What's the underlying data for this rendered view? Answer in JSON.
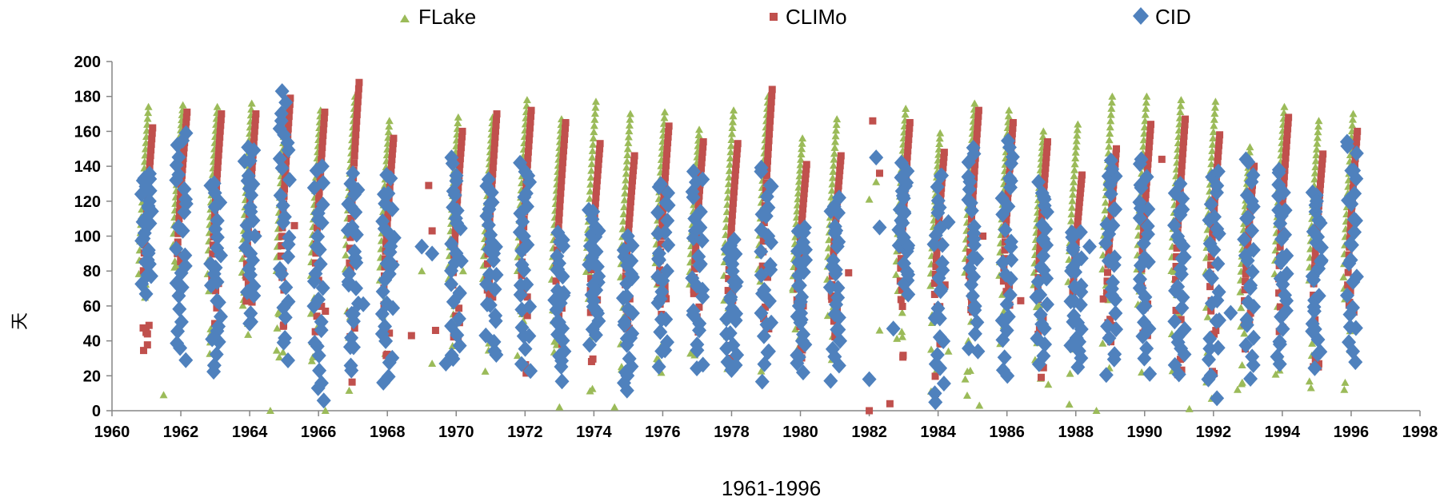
{
  "chart_data": {
    "type": "scatter",
    "xlabel": "1961-1996",
    "ylabel": "天",
    "xlim": [
      1960,
      1998
    ],
    "ylim": [
      0,
      200
    ],
    "x_ticks": [
      "1960",
      "1962",
      "1964",
      "1966",
      "1968",
      "1970",
      "1972",
      "1974",
      "1976",
      "1978",
      "1980",
      "1982",
      "1984",
      "1986",
      "1988",
      "1990",
      "1992",
      "1994",
      "1996",
      "1998"
    ],
    "y_ticks": [
      "0",
      "20",
      "40",
      "60",
      "80",
      "100",
      "120",
      "140",
      "160",
      "180",
      "200"
    ],
    "grid": false,
    "legend_position": "top",
    "series": [
      {
        "name": "FLake",
        "color": "#9bbb59",
        "marker": "triangle",
        "years": [
          1961,
          1962,
          1963,
          1964,
          1965,
          1966,
          1967,
          1968,
          1970,
          1971,
          1972,
          1973,
          1974,
          1975,
          1976,
          1977,
          1978,
          1979,
          1980,
          1981,
          1983,
          1984,
          1985,
          1986,
          1987,
          1988,
          1989,
          1990,
          1991,
          1992,
          1993,
          1994,
          1995,
          1996
        ],
        "peaks": [
          174,
          175,
          174,
          176,
          178,
          172,
          180,
          166,
          168,
          168,
          178,
          167,
          177,
          170,
          171,
          161,
          172,
          180,
          156,
          167,
          173,
          159,
          176,
          172,
          160,
          164,
          180,
          180,
          178,
          177,
          151,
          174,
          166,
          170
        ],
        "lows": [
          62,
          95,
          24,
          16,
          0,
          12,
          10,
          16,
          28,
          22,
          10,
          20,
          2,
          18,
          16,
          18,
          16,
          20,
          30,
          28,
          32,
          0,
          4,
          20,
          16,
          0,
          18,
          20,
          15,
          5,
          10,
          20,
          12,
          12
        ],
        "extra_points": [
          [
            1961.5,
            9
          ],
          [
            1964.6,
            0
          ],
          [
            1966.2,
            0
          ],
          [
            1969.0,
            80
          ],
          [
            1969.3,
            27
          ],
          [
            1970.2,
            80
          ],
          [
            1973.0,
            2
          ],
          [
            1974.6,
            2
          ],
          [
            1982.2,
            131
          ],
          [
            1982.0,
            121
          ],
          [
            1982.3,
            46
          ],
          [
            1983.8,
            35
          ],
          [
            1984.3,
            34
          ],
          [
            1985.2,
            3
          ],
          [
            1987.2,
            15
          ],
          [
            1988.6,
            0
          ],
          [
            1991.3,
            1
          ],
          [
            1992.7,
            12
          ],
          [
            1995.8,
            12
          ]
        ]
      },
      {
        "name": "CLIMo",
        "color": "#c0504d",
        "marker": "square",
        "years": [
          1961,
          1962,
          1963,
          1964,
          1965,
          1966,
          1967,
          1968,
          1970,
          1971,
          1972,
          1973,
          1974,
          1975,
          1976,
          1977,
          1978,
          1979,
          1980,
          1981,
          1983,
          1984,
          1985,
          1986,
          1987,
          1988,
          1989,
          1990,
          1991,
          1992,
          1993,
          1994,
          1995,
          1996
        ],
        "peaks": [
          162,
          171,
          170,
          170,
          179,
          171,
          188,
          156,
          160,
          170,
          172,
          165,
          153,
          146,
          163,
          154,
          153,
          184,
          141,
          146,
          165,
          148,
          172,
          165,
          154,
          135,
          150,
          164,
          167,
          158,
          140,
          168,
          147,
          160
        ],
        "lows": [
          18,
          90,
          33,
          60,
          40,
          20,
          16,
          10,
          40,
          60,
          15,
          28,
          20,
          40,
          55,
          40,
          20,
          20,
          25,
          40,
          8,
          5,
          20,
          45,
          19,
          62,
          30,
          42,
          20,
          20,
          35,
          45,
          22,
          50
        ],
        "extra_points": [
          [
            1964.2,
            101
          ],
          [
            1965.3,
            106
          ],
          [
            1966.2,
            57
          ],
          [
            1968.2,
            84
          ],
          [
            1968.7,
            43
          ],
          [
            1969.2,
            129
          ],
          [
            1969.3,
            103
          ],
          [
            1969.4,
            46
          ],
          [
            1981.4,
            79
          ],
          [
            1982.0,
            0
          ],
          [
            1982.1,
            166
          ],
          [
            1982.3,
            136
          ],
          [
            1982.6,
            4
          ],
          [
            1983.9,
            73
          ],
          [
            1984.2,
            72
          ],
          [
            1985.3,
            100
          ],
          [
            1986.4,
            63
          ],
          [
            1988.8,
            64
          ],
          [
            1990.1,
            146
          ],
          [
            1990.5,
            144
          ]
        ]
      },
      {
        "name": "CID",
        "color": "#4f81bd",
        "marker": "diamond",
        "years": [
          1961,
          1962,
          1963,
          1964,
          1965,
          1966,
          1967,
          1968,
          1970,
          1971,
          1972,
          1973,
          1974,
          1975,
          1976,
          1977,
          1978,
          1979,
          1980,
          1981,
          1983,
          1984,
          1985,
          1986,
          1987,
          1988,
          1989,
          1990,
          1991,
          1992,
          1993,
          1994,
          1995,
          1996
        ],
        "peaks": [
          138,
          159,
          132,
          152,
          183,
          140,
          136,
          135,
          145,
          133,
          142,
          102,
          115,
          100,
          131,
          137,
          98,
          140,
          105,
          122,
          142,
          137,
          153,
          155,
          131,
          103,
          145,
          144,
          130,
          137,
          144,
          138,
          125,
          154
        ],
        "lows": [
          69,
          28,
          20,
          48,
          28,
          3,
          22,
          15,
          28,
          30,
          22,
          19,
          38,
          10,
          26,
          22,
          22,
          18,
          22,
          20,
          68,
          2,
          32,
          18,
          28,
          25,
          22,
          23,
          18,
          8,
          20,
          24,
          24,
          26
        ],
        "extra_points": [
          [
            1965.0,
            158
          ],
          [
            1967.3,
            61
          ],
          [
            1968.2,
            99
          ],
          [
            1969.0,
            94
          ],
          [
            1969.3,
            90
          ],
          [
            1969.7,
            27
          ],
          [
            1982.0,
            18
          ],
          [
            1982.2,
            145
          ],
          [
            1982.3,
            105
          ],
          [
            1982.7,
            47
          ],
          [
            1984.3,
            108
          ],
          [
            1988.4,
            94
          ],
          [
            1992.5,
            56
          ],
          [
            1995.0,
            120
          ]
        ]
      }
    ]
  }
}
